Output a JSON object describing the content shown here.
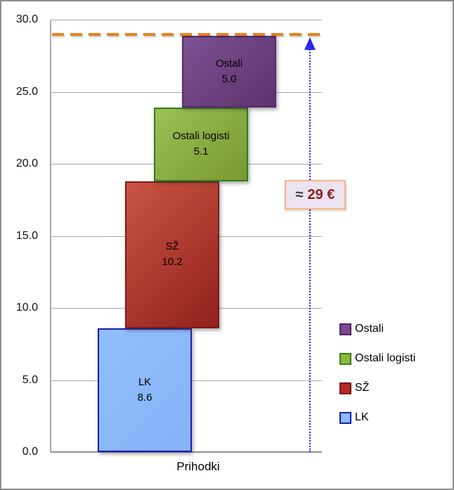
{
  "chart_data": {
    "type": "bar",
    "subtype": "waterfall-stacked",
    "title": "",
    "xlabel": "Prihodki",
    "ylabel": "",
    "categories": [
      "Prihodki"
    ],
    "ylim": [
      0,
      30
    ],
    "yticks": [
      0,
      5,
      10,
      15,
      20,
      25,
      30
    ],
    "ytick_labels": [
      "0.0",
      "5.0",
      "10.0",
      "15.0",
      "20.0",
      "25.0",
      "30.0"
    ],
    "grid": true,
    "legend_position": "right",
    "segments": [
      {
        "id": "lk",
        "label": "LK",
        "value": 8.6,
        "value_label": "8.6",
        "start": 0,
        "fill_top": "#90bdfd",
        "fill_bottom": "#85b3f8",
        "border": "#1c1cb0"
      },
      {
        "id": "sz",
        "label": "SŽ",
        "value": 10.2,
        "value_label": "10.2",
        "start": 8.6,
        "fill_top": "#ca5443",
        "fill_bottom": "#93201d",
        "border": "#7e1a16"
      },
      {
        "id": "ostali-logisti",
        "label": "Ostali logisti",
        "value": 5.1,
        "value_label": "5.1",
        "start": 18.8,
        "fill_top": "#9cc155",
        "fill_bottom": "#78992e",
        "border": "#2f7d1d"
      },
      {
        "id": "ostali",
        "label": "Ostali",
        "value": 5.0,
        "value_label": "5.0",
        "start": 23.9,
        "fill_top": "#7d5292",
        "fill_bottom": "#5d326e",
        "border": "#5a2a6d"
      }
    ],
    "total_line": {
      "value": 29,
      "color": "#e8801f",
      "style": "dashed"
    },
    "arrow": {
      "color": "#2828f0",
      "style": "dotted"
    },
    "annotation": {
      "text": "≈ 29 €",
      "approx": "≈",
      "value_text": "29 €",
      "bg": "#ebe3f0",
      "border": "#f6b57e",
      "approx_color": "#333333",
      "value_color": "#8b1d1d"
    },
    "legend": {
      "items": [
        {
          "label": "Ostali",
          "fill": "#7a4890",
          "border": "#4f2363"
        },
        {
          "label": "Ostali logisti",
          "fill": "#8cb83e",
          "border": "#3c7d1b"
        },
        {
          "label": "SŽ",
          "fill": "#b22a26",
          "border": "#7a1614"
        },
        {
          "label": "LK",
          "fill": "#8bbafc",
          "border": "#1c1cb0"
        }
      ]
    }
  }
}
